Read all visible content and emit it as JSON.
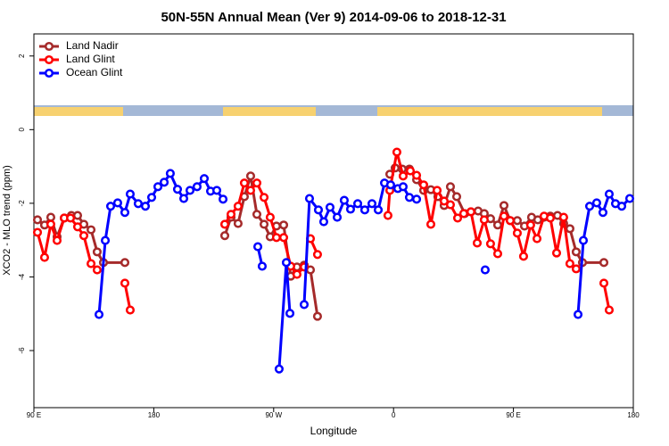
{
  "chart_data": {
    "type": "line",
    "title": "50N-55N Annual Mean (Ver 9)   2014-09-06 to 2018-12-31",
    "x_label": "Longitude",
    "y_label": "XCO2 - MLO trend (ppm)",
    "xlim": [
      90,
      540
    ],
    "ylim": [
      -7.55,
      2.6
    ],
    "xticks": [
      {
        "value": 90,
        "label": "90 E"
      },
      180,
      {
        "value": 270,
        "label": "90 W"
      },
      {
        "value": 360,
        "label": "0"
      },
      {
        "value": 450,
        "label": "90 E"
      },
      {
        "value": 540,
        "label": "180"
      }
    ],
    "yticks": [
      -6,
      -4,
      -2,
      0,
      2
    ],
    "legend": "top-left",
    "series": [
      {
        "name": "Land Nadir",
        "color": "#a52a2a",
        "x": [
          92.7,
          98.0,
          102.7,
          107.4,
          112.8,
          118.1,
          122.8,
          127.5,
          132.9,
          137.5,
          142.2,
          158.3,
          null,
          233.3,
          238.0,
          243.3,
          248.0,
          252.7,
          257.4,
          262.8,
          267.4,
          272.1,
          277.5,
          282.8,
          287.5,
          292.9,
          297.6,
          302.9,
          null,
          357.2,
          361.2,
          366.5,
          371.9,
          377.3,
          382.6,
          388.0,
          393.3,
          398.0,
          402.7,
          407.4,
          413.4,
          418.1,
          423.5,
          428.1,
          432.8,
          438.2,
          442.9,
          447.6,
          452.9,
          458.3,
          463.6,
          468.3,
          473.0,
          477.7,
          483.1,
          487.7,
          492.4,
          497.1,
          501.8,
          517.9
        ],
        "values": [
          -2.45,
          -2.59,
          -2.38,
          -2.91,
          -2.4,
          -2.33,
          -2.33,
          -2.57,
          -2.72,
          -3.32,
          -3.61,
          -3.61,
          null,
          -2.88,
          -2.38,
          -2.55,
          -1.82,
          -1.26,
          -2.3,
          -2.57,
          -2.91,
          -2.62,
          -2.59,
          -3.98,
          -3.73,
          -3.68,
          -3.81,
          -5.07,
          null,
          -1.21,
          -1.04,
          -1.07,
          -1.07,
          -1.36,
          -1.65,
          -1.63,
          -1.82,
          -2.06,
          -1.55,
          -1.82,
          -2.28,
          -2.23,
          -2.21,
          -2.28,
          -2.42,
          -2.59,
          -2.06,
          -2.47,
          -2.47,
          -2.62,
          -2.38,
          -2.45,
          -2.38,
          -2.35,
          -2.33,
          -2.55,
          -2.69,
          -3.32,
          -3.61,
          -3.61
        ]
      },
      {
        "name": "Land Glint",
        "color": "#ff0000",
        "x": [
          92.7,
          98.0,
          102.7,
          107.4,
          112.8,
          117.5,
          122.8,
          127.5,
          132.9,
          137.5,
          null,
          158.3,
          162.3,
          null,
          233.3,
          238.0,
          243.3,
          248.0,
          252.7,
          257.4,
          262.8,
          267.4,
          272.1,
          277.5,
          282.8,
          287.5,
          292.9,
          null,
          297.6,
          302.9,
          null,
          355.8,
          357.2,
          362.5,
          367.2,
          372.6,
          377.3,
          382.6,
          388.0,
          392.7,
          398.0,
          402.7,
          408.1,
          412.7,
          418.1,
          422.8,
          428.1,
          432.8,
          438.2,
          442.9,
          447.6,
          452.9,
          457.6,
          462.9,
          467.7,
          473.0,
          477.7,
          482.4,
          487.7,
          492.4,
          497.1,
          null,
          517.9,
          521.9
        ],
        "values": [
          -2.79,
          -3.47,
          -2.57,
          -3.01,
          -2.4,
          -2.4,
          -2.64,
          -2.88,
          -3.64,
          -3.81,
          null,
          -4.17,
          -4.9,
          null,
          -2.57,
          -2.3,
          -2.08,
          -1.45,
          -1.65,
          -1.45,
          -1.84,
          -2.38,
          -2.93,
          -2.93,
          -3.71,
          -3.93,
          -3.73,
          null,
          -2.96,
          -3.39,
          null,
          -2.33,
          -1.65,
          -0.61,
          -1.26,
          -1.12,
          -1.24,
          -1.5,
          -2.57,
          -1.65,
          -1.94,
          -2.04,
          -2.4,
          -2.28,
          -2.23,
          -3.08,
          -2.45,
          -3.1,
          -3.37,
          -2.35,
          -2.47,
          -2.81,
          -3.44,
          -2.59,
          -2.96,
          -2.35,
          -2.4,
          -3.35,
          -2.38,
          -3.64,
          -3.78,
          null,
          -4.17,
          -4.9
        ]
      },
      {
        "name": "Ocean Glint",
        "color": "#0000ff",
        "x": [
          138.9,
          143.6,
          147.6,
          152.9,
          158.3,
          162.3,
          168.3,
          173.7,
          178.4,
          183.1,
          187.8,
          192.4,
          197.8,
          202.5,
          207.2,
          212.5,
          217.9,
          222.6,
          227.3,
          232.0,
          null,
          258.1,
          261.4,
          null,
          274.1,
          279.5,
          282.2,
          null,
          292.9,
          296.9,
          303.6,
          307.6,
          312.3,
          317.7,
          323.0,
          327.7,
          333.1,
          338.4,
          343.8,
          348.5,
          353.2,
          357.8,
          363.2,
          367.2,
          371.9,
          377.3,
          null,
          428.8,
          null,
          498.5,
          502.5,
          507.2,
          512.5,
          517.2,
          521.9,
          526.6,
          531.3,
          537.3
        ],
        "values": [
          -5.02,
          -3.01,
          -2.08,
          -1.99,
          -2.25,
          -1.75,
          -2.01,
          -2.08,
          -1.84,
          -1.55,
          -1.43,
          -1.19,
          -1.62,
          -1.87,
          -1.65,
          -1.55,
          -1.33,
          -1.67,
          -1.65,
          -1.89,
          null,
          -3.18,
          -3.71,
          null,
          -6.5,
          -3.61,
          -4.99,
          null,
          -4.75,
          -1.87,
          -2.18,
          -2.5,
          -2.11,
          -2.38,
          -1.92,
          -2.16,
          -2.01,
          -2.18,
          -2.01,
          -2.18,
          -1.45,
          -1.5,
          -1.6,
          -1.55,
          -1.84,
          -1.89,
          null,
          -3.81,
          null,
          -5.02,
          -3.01,
          -2.08,
          -1.99,
          -2.25,
          -1.75,
          -2.01,
          -2.08,
          -1.87
        ]
      }
    ]
  }
}
